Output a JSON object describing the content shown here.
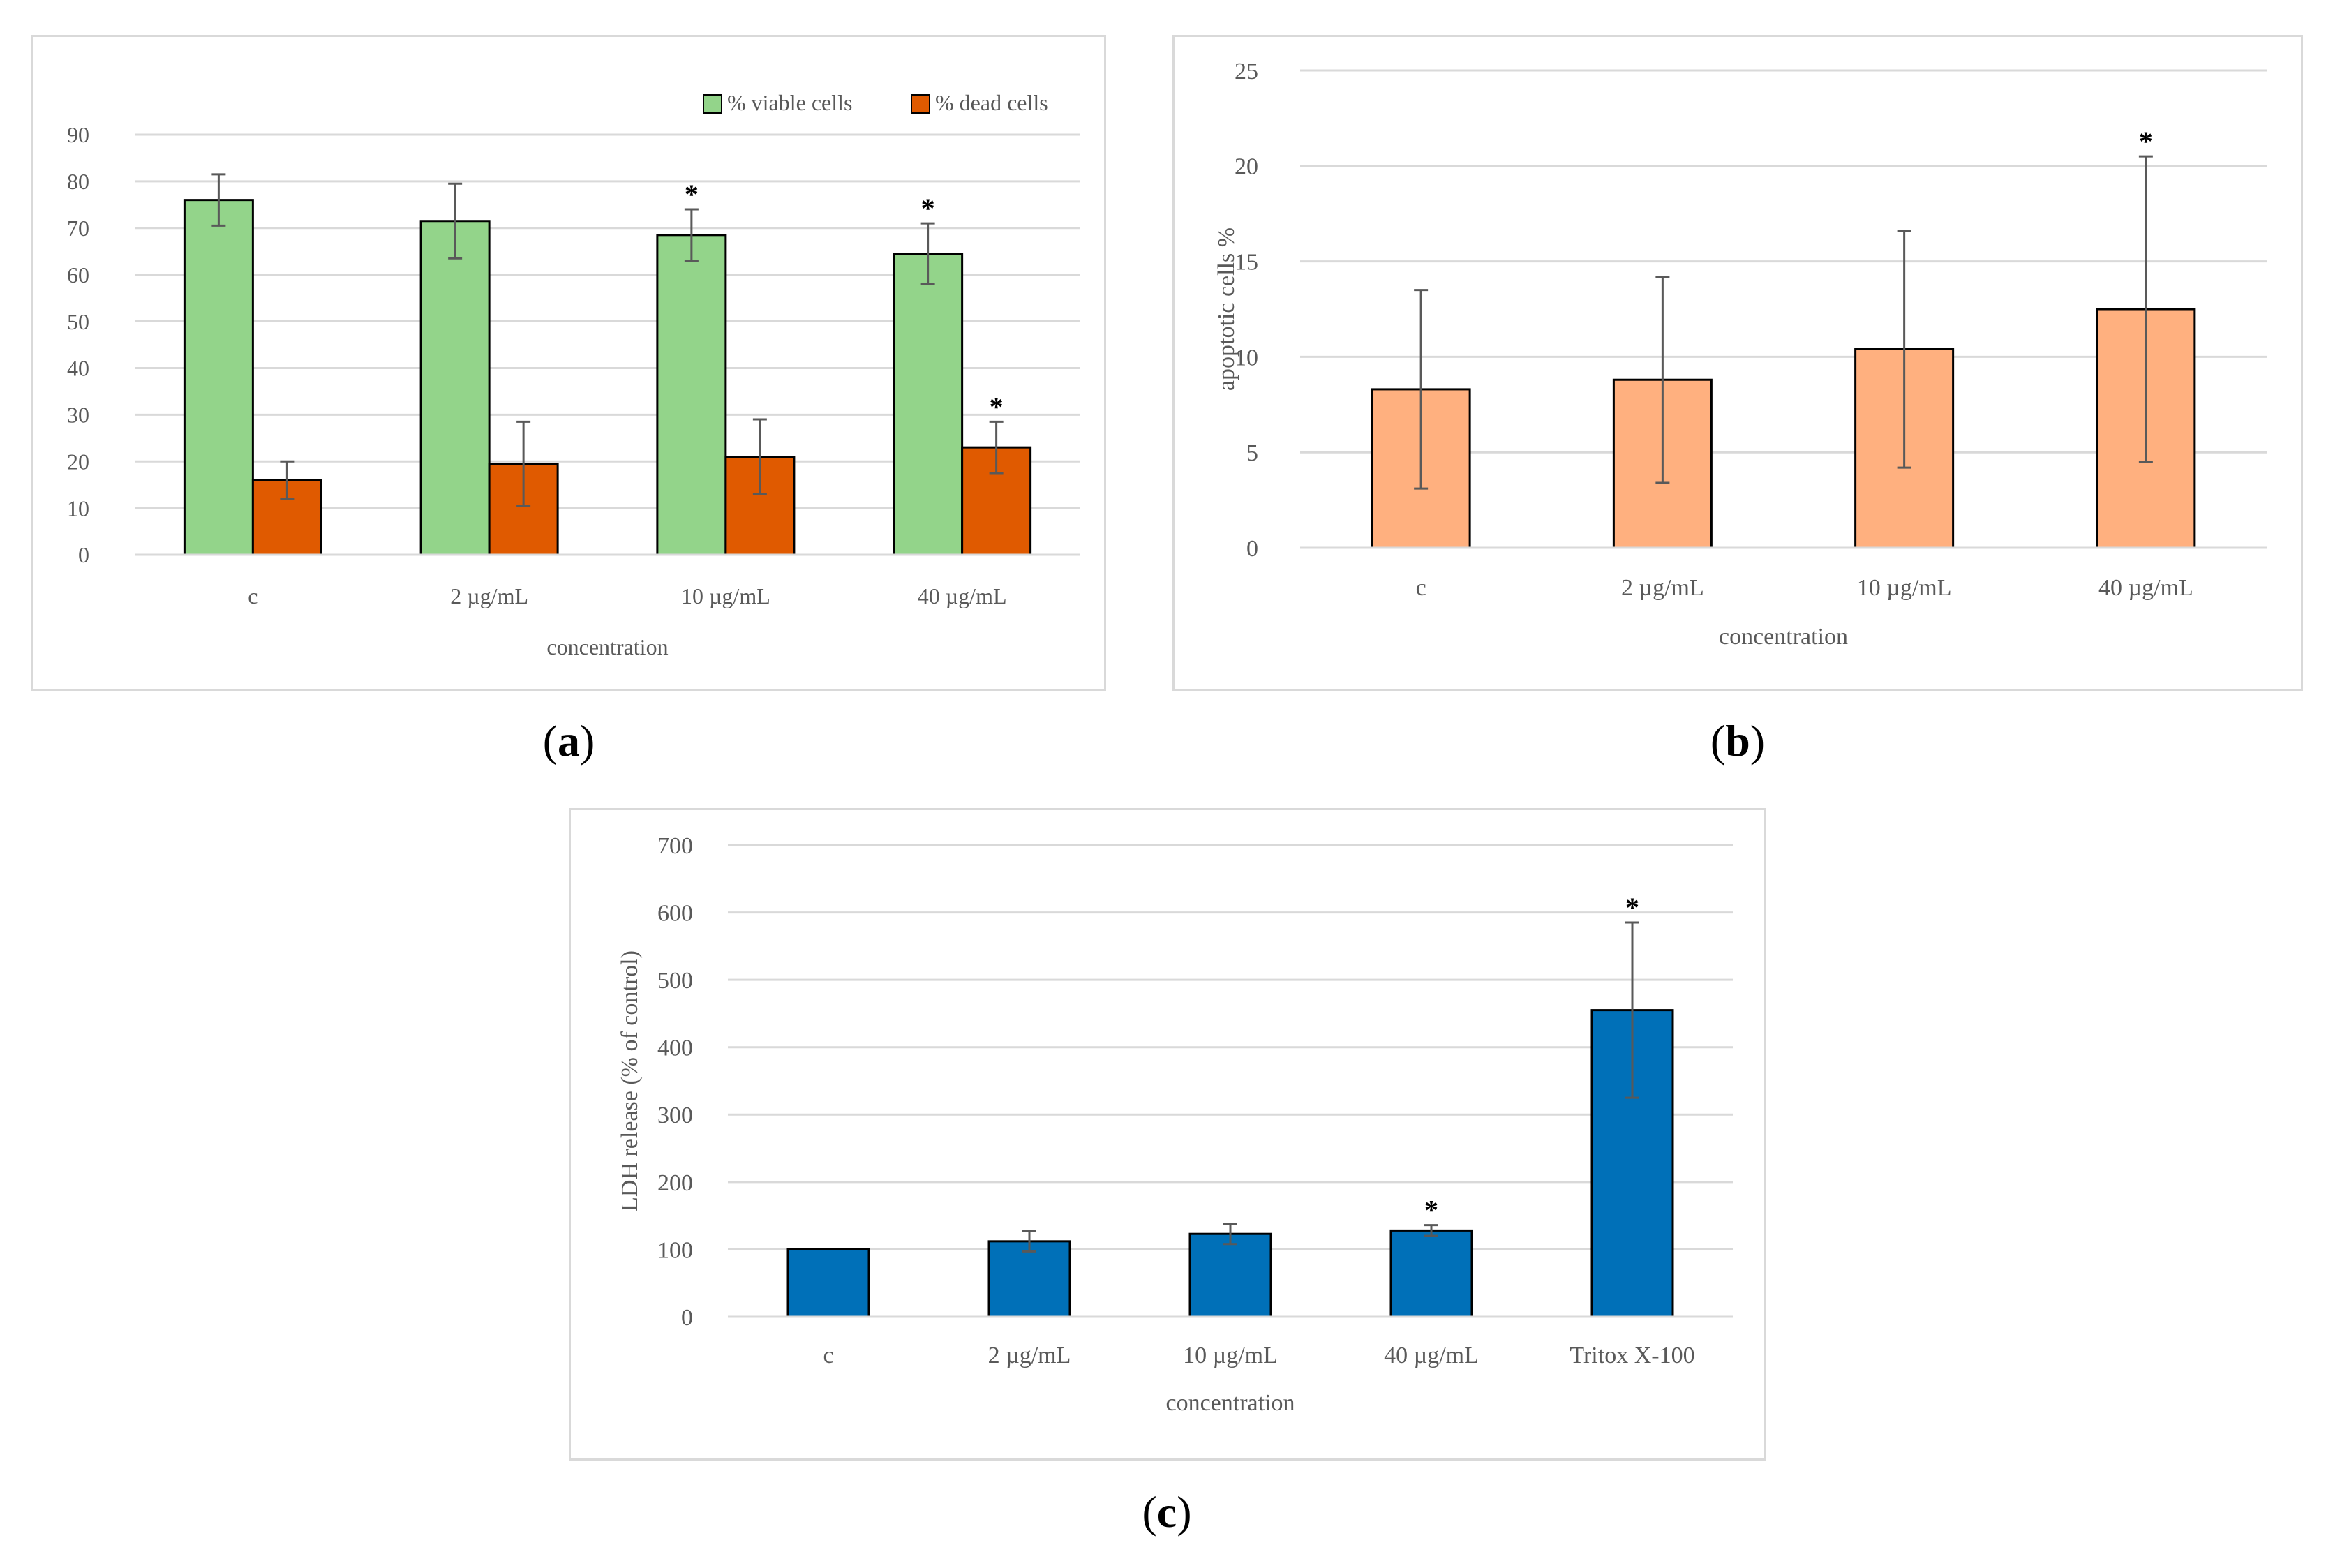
{
  "captions": {
    "a": "a",
    "b": "b",
    "c": "c"
  },
  "colors": {
    "viable": "#93d48a",
    "dead": "#e05a00",
    "apoptotic": "#ffb07f",
    "ldh": "#0070b8",
    "grid": "#d9d9d9",
    "axis_text": "#595959",
    "error_bar": "#595959"
  },
  "chart_data": [
    {
      "id": "a",
      "type": "bar",
      "title": "",
      "xlabel": "concentration",
      "ylabel": "",
      "categories": [
        "c",
        "2 µg/mL",
        "10 µg/mL",
        "40 µg/mL"
      ],
      "ylim": [
        0,
        90
      ],
      "yticks": [
        0,
        10,
        20,
        30,
        40,
        50,
        60,
        70,
        80,
        90
      ],
      "grid": true,
      "legend": "top-right",
      "series": [
        {
          "name": "% viable cells",
          "color_key": "viable",
          "values": [
            76,
            71.5,
            68.5,
            64.5
          ],
          "errors": [
            5.5,
            8,
            5.5,
            6.5
          ],
          "significant": [
            false,
            false,
            true,
            true
          ]
        },
        {
          "name": "% dead cells",
          "color_key": "dead",
          "values": [
            16,
            19.5,
            21,
            23
          ],
          "errors": [
            4,
            9,
            8,
            5.5
          ],
          "significant": [
            false,
            false,
            false,
            true
          ]
        }
      ]
    },
    {
      "id": "b",
      "type": "bar",
      "title": "",
      "xlabel": "concentration",
      "ylabel": "apoptotic cells %",
      "categories": [
        "c",
        "2 µg/mL",
        "10 µg/mL",
        "40 µg/mL"
      ],
      "ylim": [
        0,
        25
      ],
      "yticks": [
        0,
        5,
        10,
        15,
        20,
        25
      ],
      "grid": true,
      "series": [
        {
          "name": "",
          "color_key": "apoptotic",
          "values": [
            8.3,
            8.8,
            10.4,
            12.5
          ],
          "errors": [
            5.2,
            5.4,
            6.2,
            8
          ],
          "significant": [
            false,
            false,
            false,
            true
          ]
        }
      ]
    },
    {
      "id": "c",
      "type": "bar",
      "title": "",
      "xlabel": "concentration",
      "ylabel": "LDH release (% of control)",
      "categories": [
        "c",
        "2 µg/mL",
        "10 µg/mL",
        "40 µg/mL",
        "Tritox X-100"
      ],
      "ylim": [
        0,
        700
      ],
      "yticks": [
        0,
        100,
        200,
        300,
        400,
        500,
        600,
        700
      ],
      "grid": true,
      "series": [
        {
          "name": "",
          "color_key": "ldh",
          "values": [
            100,
            112,
            123,
            128,
            455
          ],
          "errors": [
            0,
            15,
            15,
            8,
            130
          ],
          "significant": [
            false,
            false,
            false,
            true,
            true
          ]
        }
      ]
    }
  ]
}
